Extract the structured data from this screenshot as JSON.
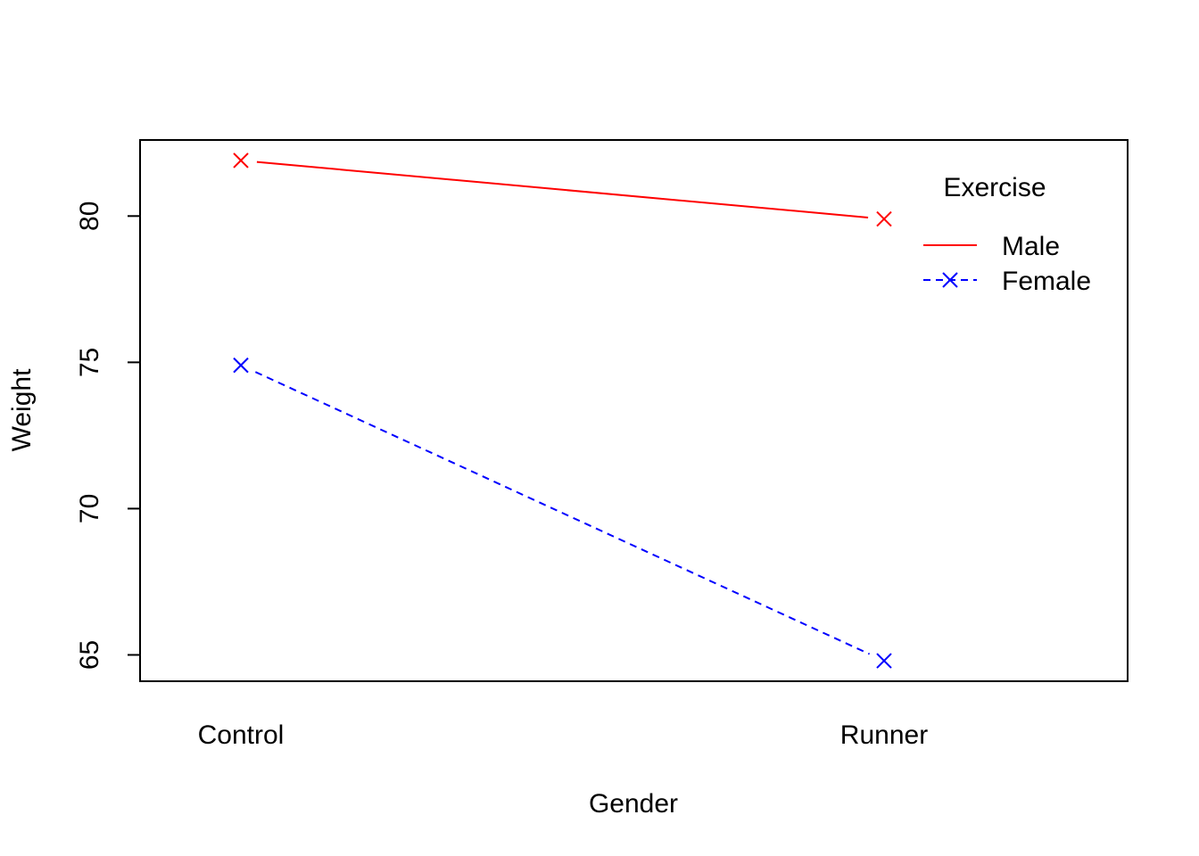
{
  "chart_data": {
    "type": "line",
    "title": "",
    "xlabel": "Gender",
    "ylabel": "Weight",
    "categories": [
      "Control",
      "Runner"
    ],
    "ylim": [
      64.1,
      82.6
    ],
    "yticks": [
      65,
      70,
      75,
      80
    ],
    "grid": false,
    "legend": {
      "title": "Exercise",
      "placement": "top-right"
    },
    "series": [
      {
        "name": "Male",
        "values": [
          81.9,
          79.9
        ],
        "color": "#ff0000",
        "line_style": "solid",
        "marker": "x"
      },
      {
        "name": "Female",
        "values": [
          74.9,
          64.8
        ],
        "color": "#0000ff",
        "line_style": "dashed",
        "marker": "x"
      }
    ]
  }
}
